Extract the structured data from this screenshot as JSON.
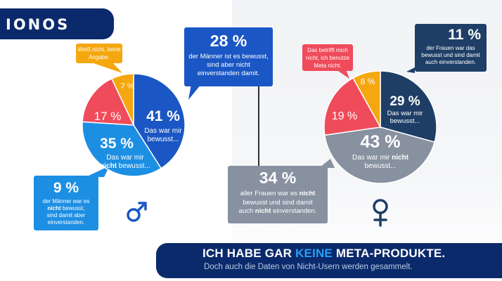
{
  "logo": {
    "text": "IONOS"
  },
  "men": {
    "callouts": {
      "knew_disagree": {
        "pct": "28 %",
        "text": "der Männer ist es bewusst, sind aber nicht einverstanden damit."
      },
      "no_answer": {
        "text": "Weiß nicht, keine Angabe."
      },
      "knew_agree": {
        "pct": "9 %",
        "line1": "der Männer war es",
        "line2_bold": "nicht",
        "line2_rest": " bewusst,",
        "line3": "sind damit aber",
        "line4": "einverstanden."
      }
    },
    "pie_labels": {
      "aware_pct": "41 %",
      "aware_line1": "Das war mir",
      "aware_line2": "bewusst...",
      "unaware_pct": "35 %",
      "unaware_line1": "Das war mir",
      "unaware_bold": "nicht",
      "unaware_line2_rest": " bewusst...",
      "red_pct": "17 %",
      "orange_pct": "7 %"
    }
  },
  "women": {
    "callouts": {
      "unaware_disagree": {
        "pct": "34 %",
        "line1_pre": "aller Frauen war es ",
        "line1_bold": "nicht",
        "line2": "bewusst und sind damit",
        "line3_pre": "auch ",
        "line3_bold": "nicht",
        "line3_rest": " einverstanden."
      },
      "not_applicable": {
        "text": "Das betrifft mich nicht, ich benutze Meta nicht."
      },
      "aware_agree": {
        "pct": "11 %",
        "text": "der Frauen war das bewusst und sind damit auch einverstanden."
      }
    },
    "pie_labels": {
      "aware_pct": "29 %",
      "aware_line1": "Das war mir",
      "aware_line2": "bewusst...",
      "unaware_pct": "43 %",
      "unaware_line1_pre": "Das war mir ",
      "unaware_bold": "nicht",
      "unaware_line2": "bewusst...",
      "red_pct": "19 %",
      "orange_pct": "8 %"
    }
  },
  "footer": {
    "headline_pre": "ICH HABE GAR ",
    "headline_highlight": "KEINE",
    "headline_post": " META-PRODUKTE.",
    "subline": "Doch auch die Daten von Nicht-Usern werden gesammelt."
  },
  "colors": {
    "blue_dark": "#1b57c4",
    "blue_light": "#1d8fe3",
    "red": "#ef4b5a",
    "orange": "#f5a70f",
    "navy": "#1e3e66",
    "gray": "#8791a0",
    "band": "#0b2a6b",
    "highlight": "#2a9df4"
  },
  "chart_data": [
    {
      "type": "pie",
      "title": "",
      "categories": [
        "Das war mir bewusst...",
        "Das war mir nicht bewusst...",
        "",
        "Weiß nicht, keine Angabe."
      ],
      "values": [
        41,
        35,
        17,
        7
      ],
      "colors": [
        "#1b57c4",
        "#1d8fe3",
        "#ef4b5a",
        "#f5a70f"
      ],
      "callouts": [
        {
          "value": 28,
          "text": "der Männer ist es bewusst, sind aber nicht einverstanden damit."
        },
        {
          "value": 9,
          "text": "der Männer war es nicht bewusst, sind damit aber einverstanden."
        }
      ]
    },
    {
      "type": "pie",
      "title": "",
      "categories": [
        "Das war mir bewusst...",
        "Das war mir nicht bewusst...",
        "Das betrifft mich nicht, ich benutze Meta nicht.",
        ""
      ],
      "values": [
        29,
        43,
        19,
        8
      ],
      "colors": [
        "#1e3e66",
        "#8791a0",
        "#ef4b5a",
        "#f5a70f"
      ],
      "callouts": [
        {
          "value": 34,
          "text": "aller Frauen war es nicht bewusst und sind damit auch nicht einverstanden."
        },
        {
          "value": 11,
          "text": "der Frauen war das bewusst und sind damit auch einverstanden."
        }
      ]
    }
  ]
}
